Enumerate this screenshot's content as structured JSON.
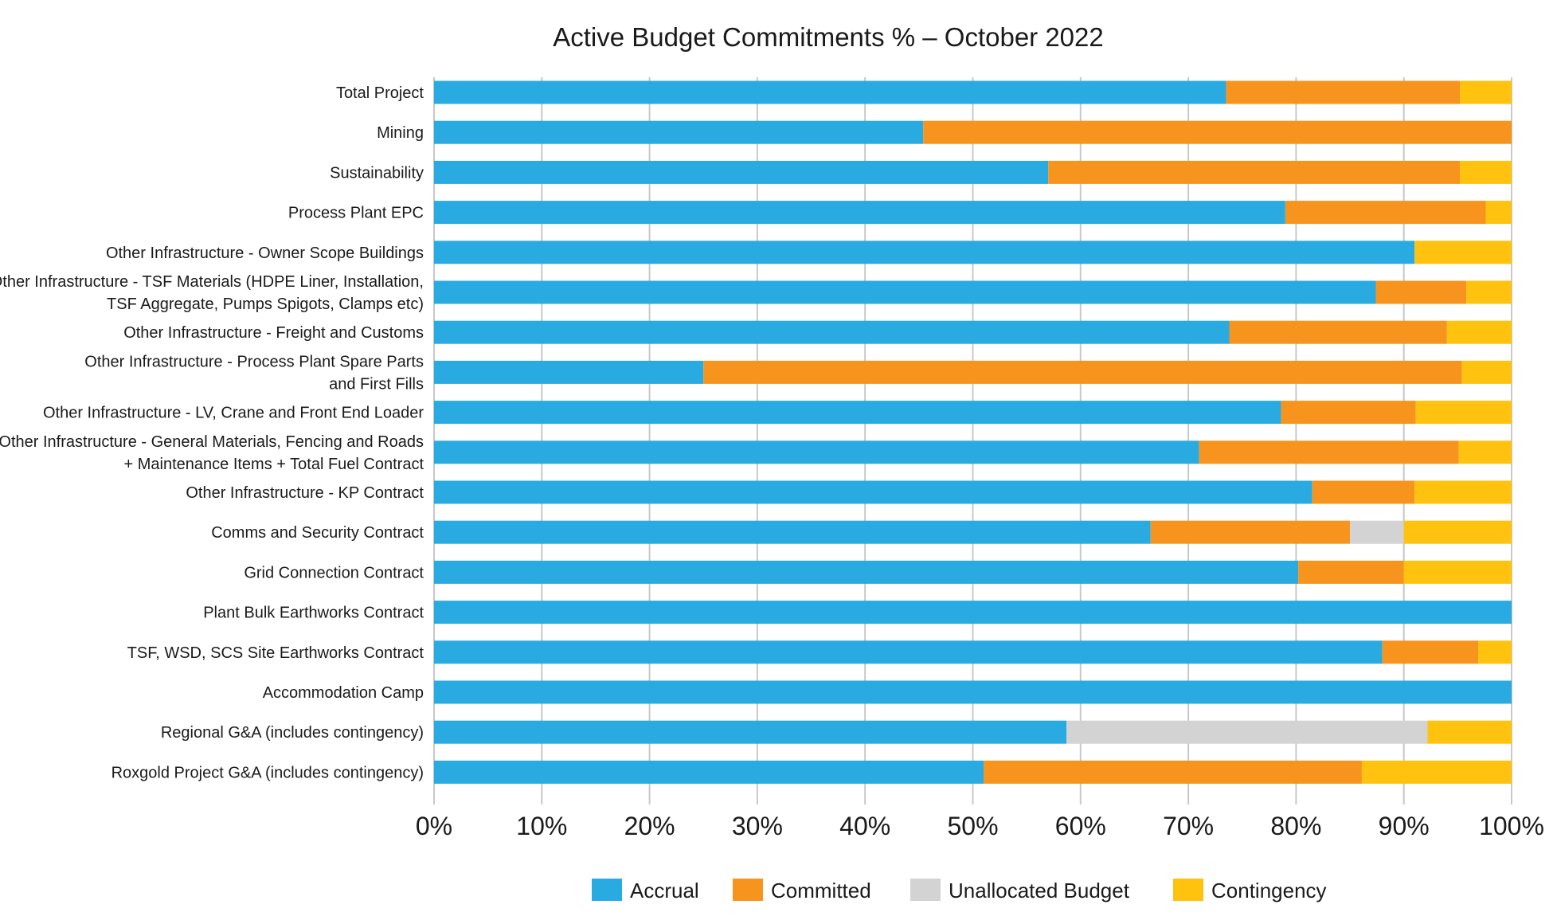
{
  "chart_data": {
    "type": "bar",
    "orientation": "horizontal",
    "stacked": true,
    "title": "Active Budget Commitments %  –  October 2022",
    "xlabel": "",
    "ylabel": "",
    "xlim": [
      0,
      100
    ],
    "x_ticks": [
      "0%",
      "10%",
      "20%",
      "30%",
      "40%",
      "50%",
      "60%",
      "70%",
      "80%",
      "90%",
      "100%"
    ],
    "grid": true,
    "legend_position": "bottom",
    "categories": [
      [
        "Total Project"
      ],
      [
        "Mining"
      ],
      [
        "Sustainability"
      ],
      [
        "Process Plant EPC"
      ],
      [
        "Other Infrastructure - Owner Scope Buildings"
      ],
      [
        "Other Infrastructure - TSF Materials (HDPE Liner, Installation,",
        "TSF Aggregate, Pumps Spigots, Clamps etc)"
      ],
      [
        "Other Infrastructure - Freight and Customs"
      ],
      [
        "Other Infrastructure - Process Plant Spare Parts",
        "and First Fills"
      ],
      [
        "Other Infrastructure - LV, Crane and Front End Loader"
      ],
      [
        "Other Infrastructure - General Materials, Fencing and Roads",
        "+ Maintenance Items + Total Fuel Contract"
      ],
      [
        "Other Infrastructure - KP Contract"
      ],
      [
        "Comms and Security Contract"
      ],
      [
        "Grid Connection Contract"
      ],
      [
        "Plant Bulk Earthworks Contract"
      ],
      [
        "TSF, WSD, SCS Site Earthworks Contract"
      ],
      [
        "Accommodation Camp"
      ],
      [
        "Regional G&A (includes contingency)"
      ],
      [
        "Roxgold Project G&A (includes contingency)"
      ]
    ],
    "series": [
      {
        "name": "Accrual",
        "color": "#29abe2",
        "values": [
          73.5,
          45.4,
          57.0,
          79.0,
          91.0,
          87.4,
          73.8,
          25.0,
          78.6,
          71.0,
          81.5,
          66.5,
          80.2,
          100.0,
          88.0,
          100.0,
          58.7,
          51.0
        ]
      },
      {
        "name": "Committed",
        "color": "#f7941d",
        "values": [
          21.7,
          54.6,
          38.2,
          18.6,
          0.0,
          8.4,
          20.2,
          70.4,
          12.5,
          24.1,
          9.5,
          18.5,
          9.8,
          0.0,
          8.9,
          0.0,
          0.0,
          35.1
        ]
      },
      {
        "name": "Unallocated Budget",
        "color": "#d3d3d3",
        "values": [
          0,
          0,
          0,
          0,
          0,
          0,
          0,
          0,
          0,
          0,
          0,
          5.0,
          0,
          0,
          0,
          0,
          33.5,
          0
        ]
      },
      {
        "name": "Contingency",
        "color": "#ffc20e",
        "values": [
          4.8,
          0.0,
          4.8,
          2.4,
          9.0,
          4.2,
          6.0,
          4.6,
          8.9,
          4.9,
          9.0,
          10.0,
          10.0,
          0.0,
          3.1,
          0.0,
          7.8,
          13.9
        ]
      }
    ]
  }
}
